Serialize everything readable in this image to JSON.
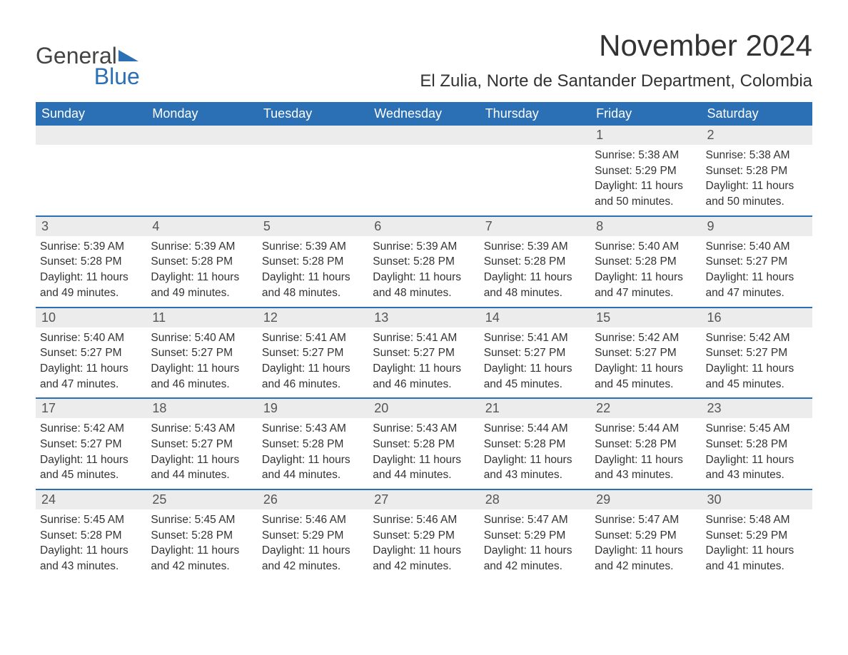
{
  "brand": {
    "general": "General",
    "blue": "Blue",
    "logo_color": "#2b6fb5"
  },
  "title": "November 2024",
  "location": "El Zulia, Norte de Santander Department, Colombia",
  "colors": {
    "header_bg": "#2b6fb5",
    "header_text": "#ffffff",
    "daynum_bg": "#ececec",
    "week_border": "#2b6fb5",
    "body_text": "#333333",
    "background": "#ffffff"
  },
  "typography": {
    "title_fontsize": 42,
    "location_fontsize": 24,
    "day_header_fontsize": 18,
    "daynum_fontsize": 18,
    "detail_fontsize": 15.5,
    "font_family": "Arial, Helvetica, sans-serif"
  },
  "day_names": [
    "Sunday",
    "Monday",
    "Tuesday",
    "Wednesday",
    "Thursday",
    "Friday",
    "Saturday"
  ],
  "label_sunrise": "Sunrise: ",
  "label_sunset": "Sunset: ",
  "label_daylight": "Daylight: ",
  "weeks": [
    [
      {
        "blank": true
      },
      {
        "blank": true
      },
      {
        "blank": true
      },
      {
        "blank": true
      },
      {
        "blank": true
      },
      {
        "day": "1",
        "sunrise": "5:38 AM",
        "sunset": "5:29 PM",
        "daylight": "11 hours and 50 minutes."
      },
      {
        "day": "2",
        "sunrise": "5:38 AM",
        "sunset": "5:28 PM",
        "daylight": "11 hours and 50 minutes."
      }
    ],
    [
      {
        "day": "3",
        "sunrise": "5:39 AM",
        "sunset": "5:28 PM",
        "daylight": "11 hours and 49 minutes."
      },
      {
        "day": "4",
        "sunrise": "5:39 AM",
        "sunset": "5:28 PM",
        "daylight": "11 hours and 49 minutes."
      },
      {
        "day": "5",
        "sunrise": "5:39 AM",
        "sunset": "5:28 PM",
        "daylight": "11 hours and 48 minutes."
      },
      {
        "day": "6",
        "sunrise": "5:39 AM",
        "sunset": "5:28 PM",
        "daylight": "11 hours and 48 minutes."
      },
      {
        "day": "7",
        "sunrise": "5:39 AM",
        "sunset": "5:28 PM",
        "daylight": "11 hours and 48 minutes."
      },
      {
        "day": "8",
        "sunrise": "5:40 AM",
        "sunset": "5:28 PM",
        "daylight": "11 hours and 47 minutes."
      },
      {
        "day": "9",
        "sunrise": "5:40 AM",
        "sunset": "5:27 PM",
        "daylight": "11 hours and 47 minutes."
      }
    ],
    [
      {
        "day": "10",
        "sunrise": "5:40 AM",
        "sunset": "5:27 PM",
        "daylight": "11 hours and 47 minutes."
      },
      {
        "day": "11",
        "sunrise": "5:40 AM",
        "sunset": "5:27 PM",
        "daylight": "11 hours and 46 minutes."
      },
      {
        "day": "12",
        "sunrise": "5:41 AM",
        "sunset": "5:27 PM",
        "daylight": "11 hours and 46 minutes."
      },
      {
        "day": "13",
        "sunrise": "5:41 AM",
        "sunset": "5:27 PM",
        "daylight": "11 hours and 46 minutes."
      },
      {
        "day": "14",
        "sunrise": "5:41 AM",
        "sunset": "5:27 PM",
        "daylight": "11 hours and 45 minutes."
      },
      {
        "day": "15",
        "sunrise": "5:42 AM",
        "sunset": "5:27 PM",
        "daylight": "11 hours and 45 minutes."
      },
      {
        "day": "16",
        "sunrise": "5:42 AM",
        "sunset": "5:27 PM",
        "daylight": "11 hours and 45 minutes."
      }
    ],
    [
      {
        "day": "17",
        "sunrise": "5:42 AM",
        "sunset": "5:27 PM",
        "daylight": "11 hours and 45 minutes."
      },
      {
        "day": "18",
        "sunrise": "5:43 AM",
        "sunset": "5:27 PM",
        "daylight": "11 hours and 44 minutes."
      },
      {
        "day": "19",
        "sunrise": "5:43 AM",
        "sunset": "5:28 PM",
        "daylight": "11 hours and 44 minutes."
      },
      {
        "day": "20",
        "sunrise": "5:43 AM",
        "sunset": "5:28 PM",
        "daylight": "11 hours and 44 minutes."
      },
      {
        "day": "21",
        "sunrise": "5:44 AM",
        "sunset": "5:28 PM",
        "daylight": "11 hours and 43 minutes."
      },
      {
        "day": "22",
        "sunrise": "5:44 AM",
        "sunset": "5:28 PM",
        "daylight": "11 hours and 43 minutes."
      },
      {
        "day": "23",
        "sunrise": "5:45 AM",
        "sunset": "5:28 PM",
        "daylight": "11 hours and 43 minutes."
      }
    ],
    [
      {
        "day": "24",
        "sunrise": "5:45 AM",
        "sunset": "5:28 PM",
        "daylight": "11 hours and 43 minutes."
      },
      {
        "day": "25",
        "sunrise": "5:45 AM",
        "sunset": "5:28 PM",
        "daylight": "11 hours and 42 minutes."
      },
      {
        "day": "26",
        "sunrise": "5:46 AM",
        "sunset": "5:29 PM",
        "daylight": "11 hours and 42 minutes."
      },
      {
        "day": "27",
        "sunrise": "5:46 AM",
        "sunset": "5:29 PM",
        "daylight": "11 hours and 42 minutes."
      },
      {
        "day": "28",
        "sunrise": "5:47 AM",
        "sunset": "5:29 PM",
        "daylight": "11 hours and 42 minutes."
      },
      {
        "day": "29",
        "sunrise": "5:47 AM",
        "sunset": "5:29 PM",
        "daylight": "11 hours and 42 minutes."
      },
      {
        "day": "30",
        "sunrise": "5:48 AM",
        "sunset": "5:29 PM",
        "daylight": "11 hours and 41 minutes."
      }
    ]
  ]
}
